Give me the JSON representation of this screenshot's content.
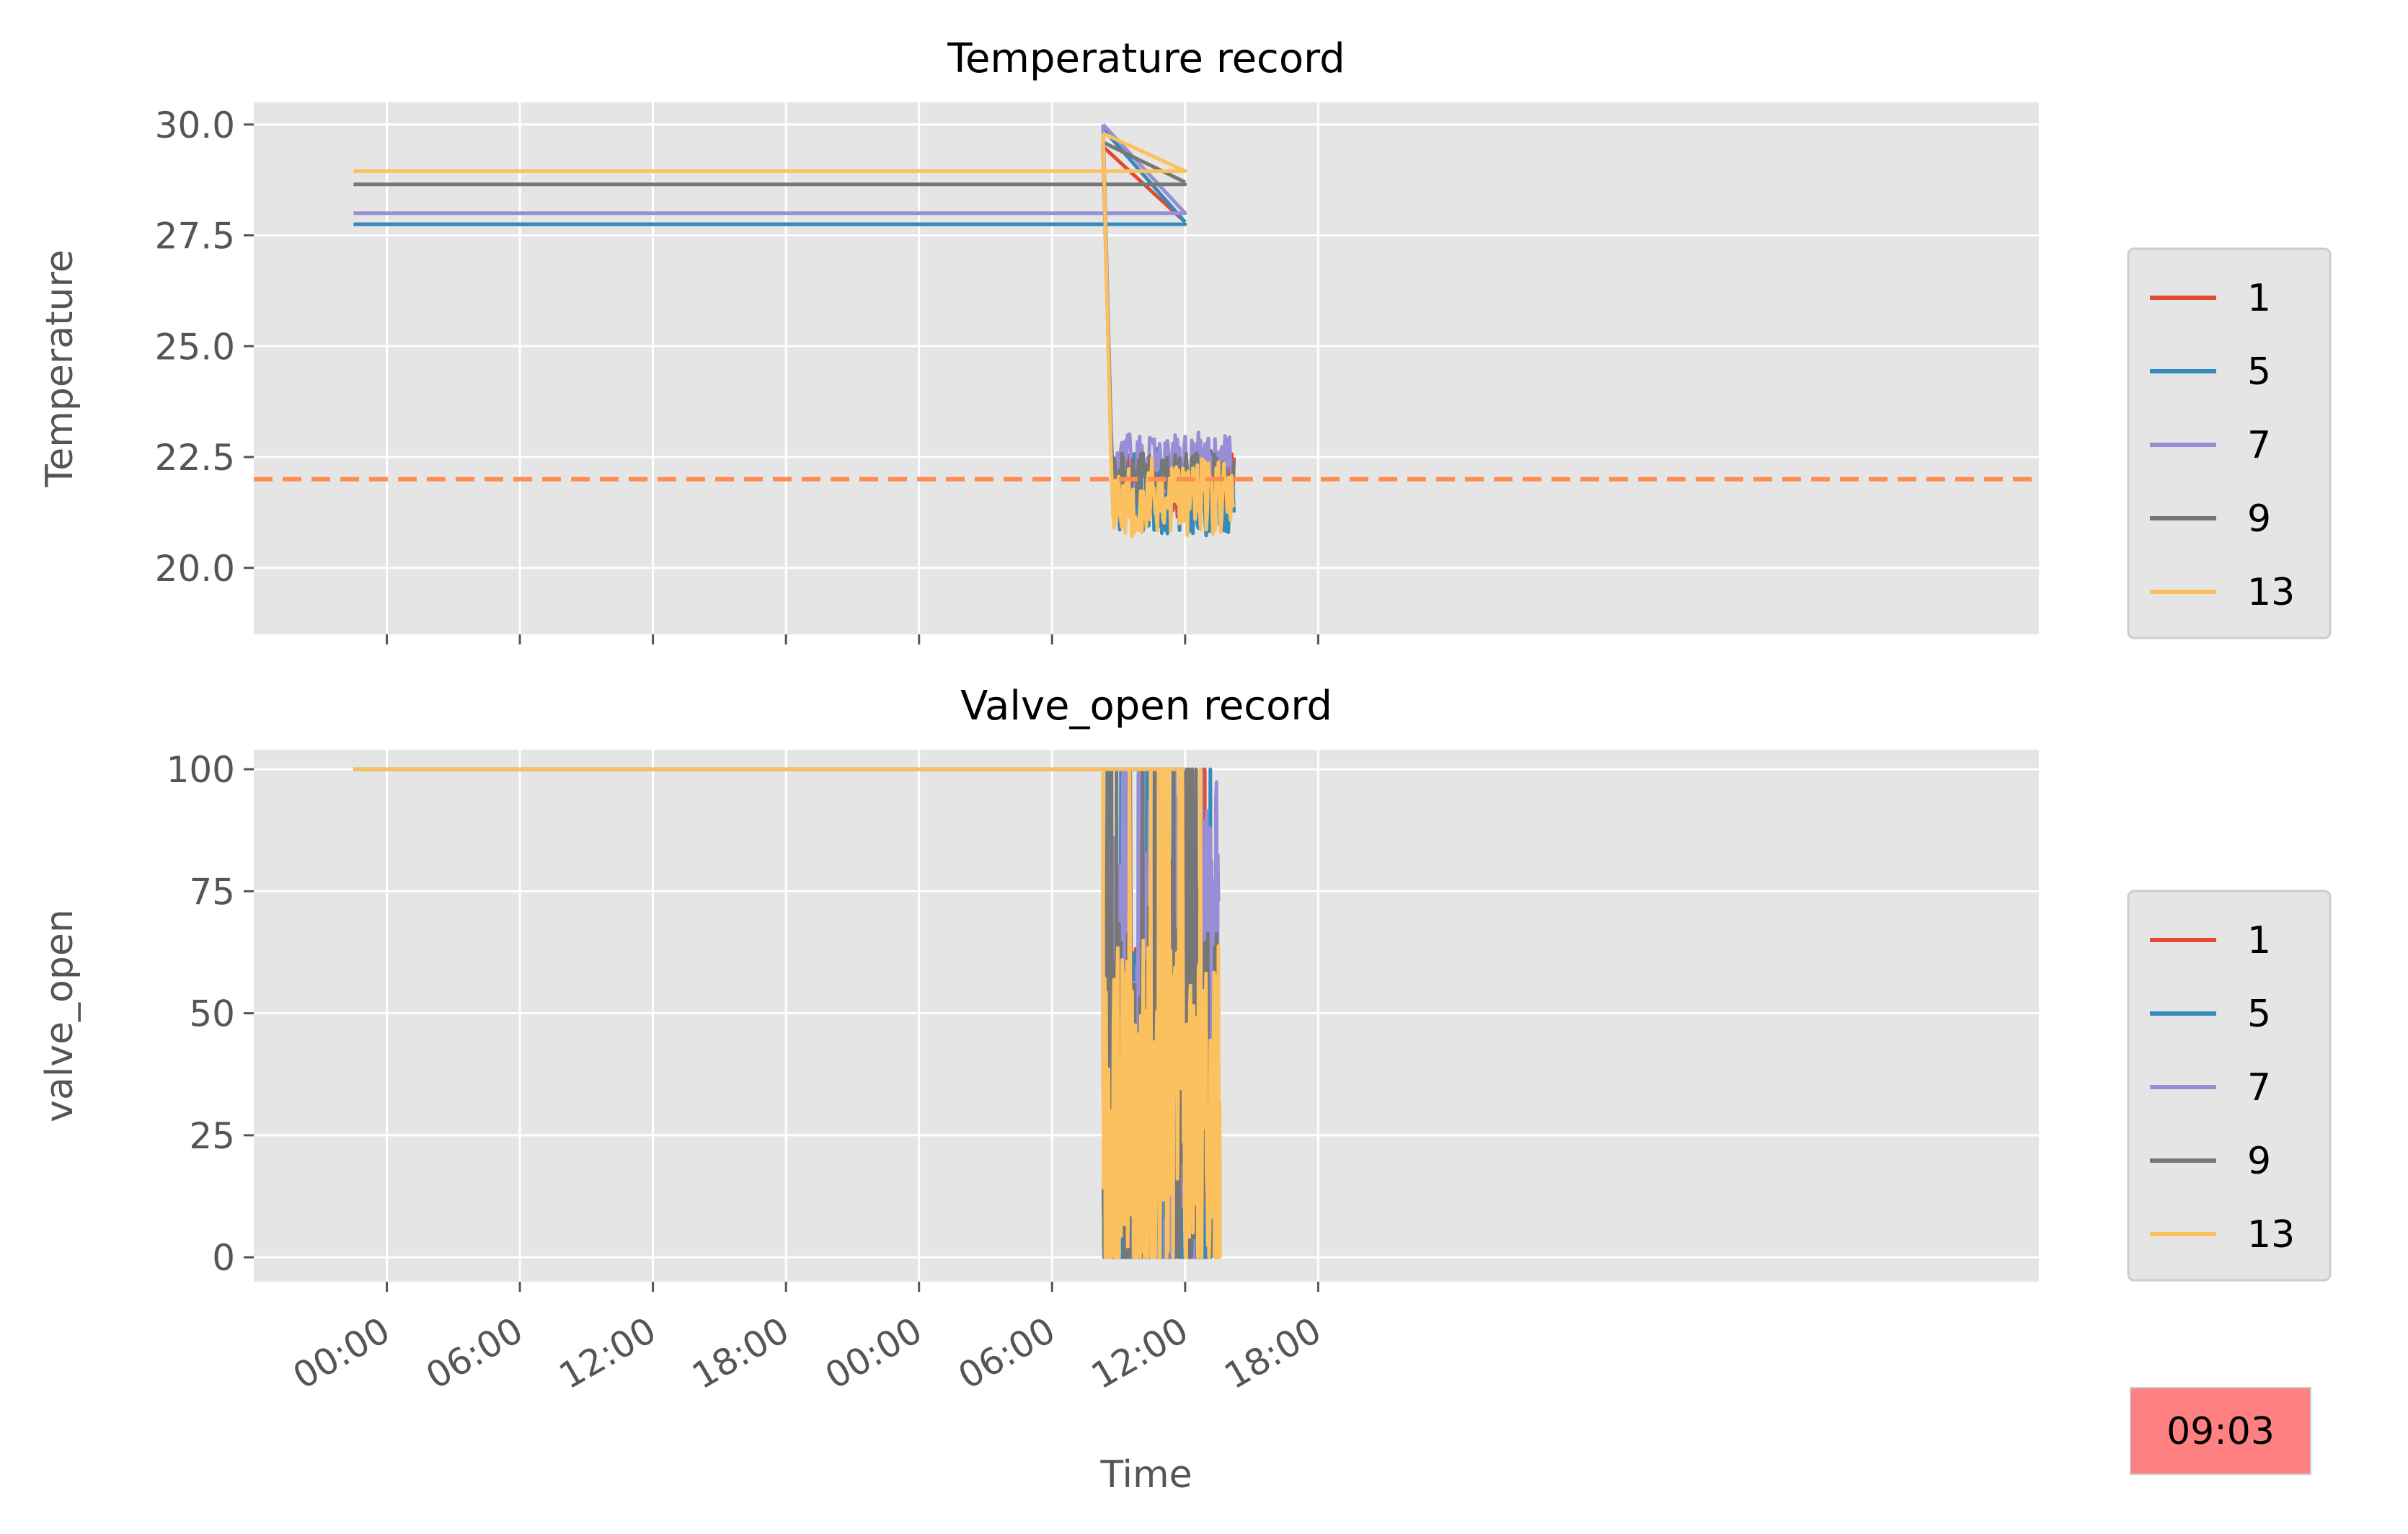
{
  "colors": {
    "1": "#e24a33",
    "5": "#348abd",
    "7": "#988ed5",
    "9": "#777777",
    "13": "#fbc15e",
    "setpoint": "#ff8c50",
    "clock_badge": "#ff8080"
  },
  "clock_badge": "09:03",
  "chart_data": [
    {
      "type": "line",
      "title": "Temperature record",
      "ylabel": "Temperature",
      "xlabel": "",
      "grid": true,
      "legend_placement": "right",
      "x_unit": "hours",
      "xlim": [
        -6,
        74.5
      ],
      "ylim": [
        18.5,
        30.5
      ],
      "yticks": [
        20.0,
        22.5,
        25.0,
        27.5,
        30.0
      ],
      "ytick_labels": [
        "20.0",
        "22.5",
        "25.0",
        "27.5",
        "30.0"
      ],
      "xticks": [
        0,
        6,
        12,
        18,
        24,
        30,
        36,
        42
      ],
      "reference_line": {
        "y": 22.0,
        "style": "dashed"
      },
      "series": [
        {
          "name": "1",
          "color_key": "1",
          "flat": [
            [
              -1.5,
              27.75
            ],
            [
              32.5,
              27.75
            ]
          ],
          "step": {
            "x": 32.3,
            "from": 27.75,
            "to": 29.5
          },
          "ramp": [
            [
              32.3,
              29.5
            ],
            [
              36.0,
              27.8
            ]
          ],
          "noisy": {
            "start": 32.3,
            "end": 38.2,
            "base": 21.9,
            "amp": 0.75,
            "seed": 11
          }
        },
        {
          "name": "5",
          "color_key": "5",
          "flat": [
            [
              -1.5,
              27.75
            ],
            [
              36.0,
              27.75
            ]
          ],
          "step": {
            "x": 32.3,
            "from": 27.75,
            "to": 29.9
          },
          "ramp": [
            [
              32.3,
              29.9
            ],
            [
              36.0,
              27.8
            ]
          ],
          "noisy": {
            "start": 32.3,
            "end": 38.2,
            "base": 21.7,
            "amp": 1.0,
            "seed": 23
          }
        },
        {
          "name": "7",
          "color_key": "7",
          "flat": [
            [
              -1.5,
              28.0
            ],
            [
              36.0,
              28.0
            ]
          ],
          "step": {
            "x": 32.3,
            "from": 28.0,
            "to": 30.0
          },
          "ramp": [
            [
              32.3,
              30.0
            ],
            [
              36.0,
              28.0
            ]
          ],
          "noisy": {
            "start": 32.3,
            "end": 38.2,
            "base": 22.3,
            "amp": 0.7,
            "seed": 37
          }
        },
        {
          "name": "9",
          "color_key": "9",
          "flat": [
            [
              -1.5,
              28.65
            ],
            [
              36.0,
              28.65
            ]
          ],
          "step": {
            "x": 32.3,
            "from": 28.65,
            "to": 29.6
          },
          "ramp": [
            [
              32.3,
              29.6
            ],
            [
              36.0,
              28.7
            ]
          ],
          "noisy": {
            "start": 32.3,
            "end": 38.2,
            "base": 22.0,
            "amp": 0.6,
            "seed": 41
          }
        },
        {
          "name": "13",
          "color_key": "13",
          "flat": [
            [
              -1.5,
              28.95
            ],
            [
              36.0,
              28.95
            ]
          ],
          "step": {
            "x": 32.3,
            "from": 28.95,
            "to": 29.8
          },
          "ramp": [
            [
              32.3,
              29.8
            ],
            [
              36.0,
              28.95
            ]
          ],
          "noisy": {
            "start": 32.3,
            "end": 38.2,
            "base": 21.6,
            "amp": 0.9,
            "seed": 53
          }
        }
      ]
    },
    {
      "type": "line",
      "title": "Valve_open record",
      "ylabel": "valve_open",
      "xlabel": "Time",
      "grid": true,
      "legend_placement": "right",
      "x_unit": "hours",
      "xlim": [
        -6,
        74.5
      ],
      "ylim": [
        -5,
        104
      ],
      "yticks": [
        0,
        25,
        50,
        75,
        100
      ],
      "ytick_labels": [
        "0",
        "25",
        "50",
        "75",
        "100"
      ],
      "xticks": [
        0,
        6,
        12,
        18,
        24,
        30,
        36,
        42
      ],
      "xtick_labels": [
        "00:00",
        "06:00",
        "12:00",
        "18:00",
        "00:00",
        "06:00",
        "12:00",
        "18:00"
      ],
      "series": [
        {
          "name": "1",
          "color_key": "1",
          "flat": [
            [
              -1.5,
              100
            ],
            [
              36.0,
              100
            ]
          ],
          "noisy": {
            "start": 32.3,
            "end": 37.0,
            "base": 30,
            "amp": 35,
            "seed": 61
          }
        },
        {
          "name": "5",
          "color_key": "5",
          "flat": [
            [
              -1.5,
              100
            ],
            [
              36.0,
              100
            ]
          ],
          "noisy": {
            "start": 32.3,
            "end": 37.2,
            "base": 32,
            "amp": 40,
            "seed": 73
          }
        },
        {
          "name": "7",
          "color_key": "7",
          "flat": [
            [
              -1.5,
              100
            ],
            [
              36.0,
              100
            ]
          ],
          "noisy": {
            "start": 32.3,
            "end": 37.5,
            "base": 50,
            "amp": 50,
            "seed": 89
          }
        },
        {
          "name": "9",
          "color_key": "9",
          "flat": [
            [
              -1.5,
              100
            ],
            [
              36.0,
              100
            ]
          ],
          "noisy": {
            "start": 32.3,
            "end": 37.5,
            "base": 35,
            "amp": 38,
            "seed": 97
          }
        },
        {
          "name": "13",
          "color_key": "13",
          "flat": [
            [
              -1.5,
              100
            ],
            [
              36.0,
              100
            ]
          ],
          "noisy": {
            "start": 32.3,
            "end": 37.6,
            "base": 30,
            "amp": 35,
            "seed": 101
          }
        }
      ]
    }
  ]
}
